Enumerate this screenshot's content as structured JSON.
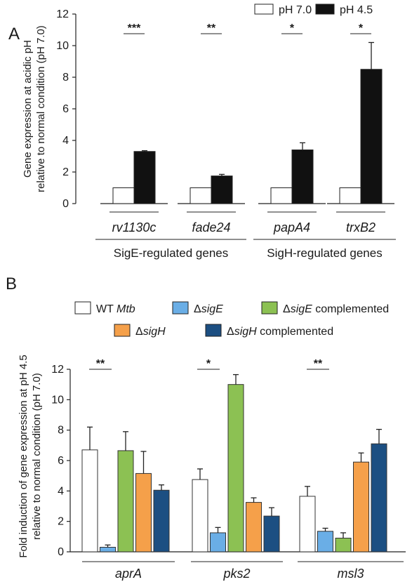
{
  "chart_data": [
    {
      "type": "bar",
      "panel": "A",
      "ylabel": [
        "Gene expression at acidic pH",
        "relative to normal condition (pH 7.0)"
      ],
      "ylim": [
        0,
        12
      ],
      "yticks": [
        "0",
        "2",
        "4",
        "6",
        "8",
        "10",
        "12"
      ],
      "categories": [
        "rv1130c",
        "fade24",
        "papA4",
        "trxB2"
      ],
      "groups": [
        {
          "label": "SigE-regulated genes",
          "categories": [
            "rv1130c",
            "fade24"
          ]
        },
        {
          "label": "SigH-regulated genes",
          "categories": [
            "papA4",
            "trxB2"
          ]
        }
      ],
      "series": [
        {
          "name": "pH 7.0",
          "color": "#ffffff",
          "values": [
            1,
            1,
            1,
            1
          ],
          "errors": [
            0,
            0,
            0,
            0
          ]
        },
        {
          "name": "pH 4.5",
          "color": "#111111",
          "values": [
            3.3,
            1.75,
            3.4,
            8.5
          ],
          "errors": [
            0.05,
            0.1,
            0.45,
            1.7
          ]
        }
      ],
      "significance": [
        "***",
        "**",
        "*",
        "*"
      ],
      "legend": "top-right",
      "grid": false
    },
    {
      "type": "bar",
      "panel": "B",
      "ylabel": [
        "Fold induction of gene expression at pH 4.5",
        "relative to normal condition (pH 7.0)"
      ],
      "ylim": [
        0,
        12
      ],
      "yticks": [
        "0",
        "2",
        "4",
        "6",
        "8",
        "10",
        "12"
      ],
      "categories": [
        "aprA",
        "pks2",
        "msl3"
      ],
      "series": [
        {
          "name_parts": [
            {
              "t": "WT ",
              "i": false
            },
            {
              "t": "Mtb",
              "i": true
            }
          ],
          "color": "#ffffff",
          "values": [
            6.7,
            4.75,
            3.65
          ],
          "errors": [
            1.5,
            0.7,
            0.65
          ]
        },
        {
          "name_parts": [
            {
              "t": "Δ",
              "i": false
            },
            {
              "t": "sigE",
              "i": true
            }
          ],
          "color": "#6aaee6",
          "values": [
            0.3,
            1.25,
            1.35
          ],
          "errors": [
            0.15,
            0.35,
            0.2
          ]
        },
        {
          "name_parts": [
            {
              "t": "Δ",
              "i": false
            },
            {
              "t": "sigE",
              "i": true
            },
            {
              "t": " complemented",
              "i": false
            }
          ],
          "color": "#8cc153",
          "values": [
            6.65,
            11.0,
            0.9
          ],
          "errors": [
            1.25,
            0.65,
            0.35
          ]
        },
        {
          "name_parts": [
            {
              "t": "Δ",
              "i": false
            },
            {
              "t": "sigH",
              "i": true
            }
          ],
          "color": "#f5a04a",
          "values": [
            5.15,
            3.25,
            5.9
          ],
          "errors": [
            1.45,
            0.3,
            0.6
          ]
        },
        {
          "name_parts": [
            {
              "t": "Δ",
              "i": false
            },
            {
              "t": "sigH",
              "i": true
            },
            {
              "t": " complemented",
              "i": false
            }
          ],
          "color": "#1c4f82",
          "values": [
            4.05,
            2.35,
            7.1
          ],
          "errors": [
            0.35,
            0.55,
            0.95
          ]
        }
      ],
      "significance": [
        "**",
        "*",
        "**"
      ],
      "legend": "top",
      "grid": false
    }
  ]
}
